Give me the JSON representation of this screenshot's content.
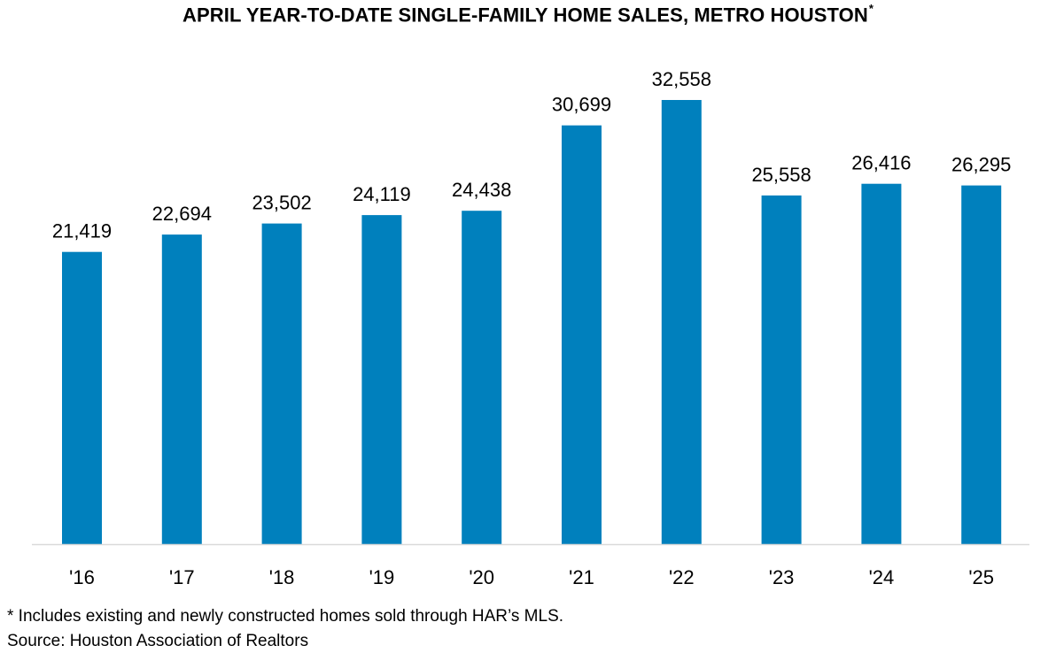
{
  "chart_data": {
    "type": "bar",
    "title": "APRIL YEAR-TO-DATE SINGLE-FAMILY HOME SALES, METRO HOUSTON",
    "title_mark": "*",
    "categories": [
      "'16",
      "'17",
      "'18",
      "'19",
      "'20",
      "'21",
      "'22",
      "'23",
      "'24",
      "'25"
    ],
    "values": [
      21419,
      22694,
      23502,
      24119,
      24438,
      30699,
      32558,
      25558,
      26416,
      26295
    ],
    "value_labels": [
      "21,419",
      "22,694",
      "23,502",
      "24,119",
      "24,438",
      "30,699",
      "32,558",
      "25,558",
      "26,416",
      "26,295"
    ],
    "xlabel": "",
    "ylabel": "",
    "ylim": [
      0,
      36000
    ],
    "grid": false,
    "legend": "none",
    "bar_color": "#0080BD",
    "axis_color": "#D9D9D9"
  },
  "footnotes": {
    "note": "* Includes existing and newly constructed homes sold through HAR’s MLS.",
    "source": "Source: Houston Association of Realtors"
  }
}
